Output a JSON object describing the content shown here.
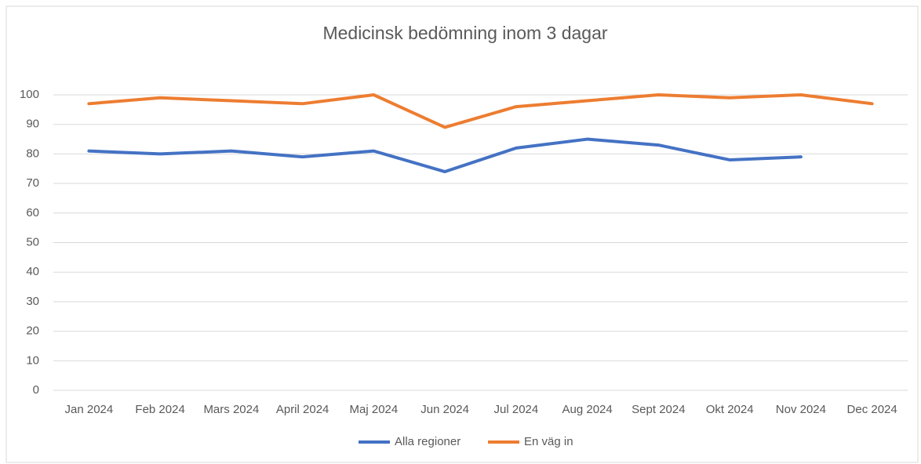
{
  "chart_data": {
    "type": "line",
    "title": "Medicinsk bedömning inom 3 dagar",
    "categories": [
      "Jan 2024",
      "Feb 2024",
      "Mars 2024",
      "April 2024",
      "Maj 2024",
      "Jun 2024",
      "Jul 2024",
      "Aug 2024",
      "Sept 2024",
      "Okt 2024",
      "Nov 2024",
      "Dec 2024"
    ],
    "series": [
      {
        "name": "Alla regioner",
        "color": "#4472c4",
        "values": [
          81,
          80,
          81,
          79,
          81,
          74,
          82,
          85,
          83,
          78,
          79,
          null
        ]
      },
      {
        "name": "En väg in",
        "color": "#ed7d31",
        "values": [
          97,
          99,
          98,
          97,
          100,
          89,
          96,
          98,
          100,
          99,
          100,
          97
        ]
      }
    ],
    "ylim": [
      0,
      100
    ],
    "yticks": [
      0,
      10,
      20,
      30,
      40,
      50,
      60,
      70,
      80,
      90,
      100
    ],
    "grid": true,
    "legend": "bottom"
  }
}
